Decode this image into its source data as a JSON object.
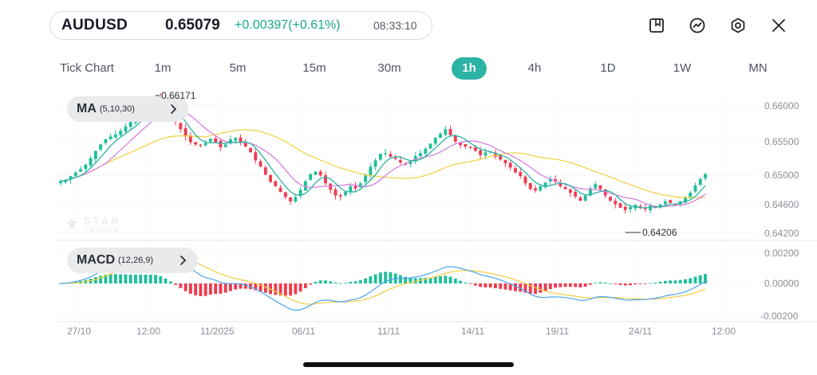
{
  "header": {
    "symbol": "AUDUSD",
    "price": "0.65079",
    "change": "+0.00397(+0.61%)",
    "time": "08:33:10",
    "icons": [
      "bookmark-icon",
      "indicator-icon",
      "settings-icon",
      "close-icon"
    ]
  },
  "timeframes": [
    {
      "label": "Tick Chart",
      "active": false
    },
    {
      "label": "1m",
      "active": false
    },
    {
      "label": "5m",
      "active": false
    },
    {
      "label": "15m",
      "active": false
    },
    {
      "label": "30m",
      "active": false
    },
    {
      "label": "1h",
      "active": true
    },
    {
      "label": "4h",
      "active": false
    },
    {
      "label": "1D",
      "active": false
    },
    {
      "label": "1W",
      "active": false
    },
    {
      "label": "MN",
      "active": false
    }
  ],
  "main_indicator": {
    "name": "MA",
    "params": "(5,10,30)"
  },
  "sub_indicator": {
    "name": "MACD",
    "params": "(12,26,9)"
  },
  "watermark": {
    "line1": "STAR",
    "line2": "TRADER"
  },
  "price_labels": {
    "high": "0.66171",
    "low": "0.64206"
  },
  "price_axis": [
    "0.66000",
    "0.65500",
    "0.65000",
    "0.64600",
    "0.64200"
  ],
  "macd_axis": [
    "0.00200",
    "0.00000",
    "-0.00200"
  ],
  "time_axis": [
    "27/10",
    "12:00",
    "11/2025",
    "06/11",
    "11/11",
    "14/11",
    "19/11",
    "24/11",
    "12:00"
  ],
  "colors": {
    "up": "#1fbf9a",
    "down": "#ef3b4f",
    "ma5": "#2bb3a3",
    "ma10": "#d580e0",
    "ma30": "#f1d34a",
    "dif": "#4aa3ee",
    "dea": "#f3cc3f",
    "accent": "#2bb3a3"
  },
  "chart_data": {
    "type": "candlestick",
    "ylim": [
      0.6418,
      0.6619
    ],
    "closes": [
      0.6498,
      0.65,
      0.6505,
      0.651,
      0.6515,
      0.6521,
      0.653,
      0.654,
      0.6549,
      0.6556,
      0.656,
      0.6563,
      0.6568,
      0.6574,
      0.658,
      0.6586,
      0.6594,
      0.6602,
      0.6608,
      0.6614,
      0.6609,
      0.66,
      0.6592,
      0.658,
      0.657,
      0.656,
      0.6552,
      0.6549,
      0.6547,
      0.6551,
      0.6557,
      0.6552,
      0.6545,
      0.6549,
      0.6556,
      0.6558,
      0.6553,
      0.6546,
      0.6538,
      0.6527,
      0.6518,
      0.6507,
      0.6497,
      0.6491,
      0.6483,
      0.6476,
      0.647,
      0.6476,
      0.6486,
      0.6498,
      0.6508,
      0.6511,
      0.6506,
      0.6495,
      0.6486,
      0.6478,
      0.6477,
      0.6483,
      0.6491,
      0.6488,
      0.6495,
      0.6506,
      0.6518,
      0.6527,
      0.6536,
      0.6537,
      0.6532,
      0.6529,
      0.6524,
      0.6521,
      0.6526,
      0.6533,
      0.6537,
      0.6543,
      0.655,
      0.6558,
      0.6564,
      0.657,
      0.6562,
      0.6553,
      0.6548,
      0.6546,
      0.6544,
      0.654,
      0.6534,
      0.6538,
      0.6539,
      0.6532,
      0.6528,
      0.6523,
      0.6517,
      0.651,
      0.6505,
      0.6495,
      0.6487,
      0.6485,
      0.6491,
      0.6496,
      0.6501,
      0.6497,
      0.6491,
      0.6487,
      0.6482,
      0.6477,
      0.6471,
      0.6478,
      0.6488,
      0.6494,
      0.6487,
      0.6478,
      0.6471,
      0.6466,
      0.6461,
      0.6458,
      0.6462,
      0.6465,
      0.6461,
      0.6459,
      0.6464,
      0.6462,
      0.6466,
      0.647,
      0.6468,
      0.6465,
      0.647,
      0.6475,
      0.6482,
      0.6492,
      0.6501,
      0.6508
    ],
    "macd_ylim": [
      -0.0024,
      0.0024
    ]
  }
}
